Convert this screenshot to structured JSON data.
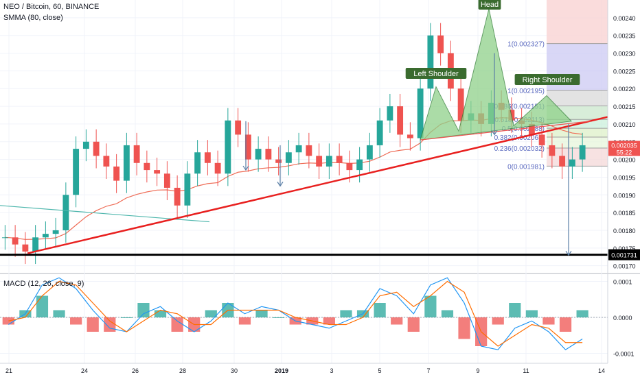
{
  "header": {
    "title": "NEO / Bitcoin, 60, BINANCE",
    "indicator": "SMMA (80, close)",
    "macd_label": "MACD (12, 26, close, 9)"
  },
  "colors": {
    "up": "#26a69a",
    "down": "#ef5350",
    "trendline": "#e8201f",
    "smma": "#ef6c56",
    "support": "#000000",
    "pattern_fill": "#8fd18a",
    "pattern_stroke": "#2e7d32",
    "macd_line": "#2196f3",
    "signal_line": "#ff6d00"
  },
  "chart_data": [
    {
      "type": "candlestick",
      "title": "NEO / Bitcoin, 60, BINANCE",
      "ylim": [
        0.00168,
        0.00245
      ],
      "y_ticks": [
        "0.00240",
        "0.00235",
        "0.00230",
        "0.00225",
        "0.00220",
        "0.00215",
        "0.00210",
        "0.00205",
        "0.00200",
        "0.00195",
        "0.00190",
        "0.00185",
        "0.00180",
        "0.00175",
        "0.00170"
      ],
      "x_ticks": [
        "21",
        "24",
        "26",
        "28",
        "30",
        "2019",
        "3",
        "5",
        "7",
        "9",
        "11",
        "14"
      ],
      "close_sequence": [
        0.00178,
        0.00176,
        0.00174,
        0.00178,
        0.00179,
        0.0018,
        0.0019,
        0.00203,
        0.00205,
        0.00201,
        0.00198,
        0.00194,
        0.00204,
        0.00199,
        0.00197,
        0.00196,
        0.00192,
        0.00187,
        0.00196,
        0.00202,
        0.00199,
        0.00196,
        0.00211,
        0.00207,
        0.002,
        0.00203,
        0.002,
        0.00199,
        0.00202,
        0.00204,
        0.00201,
        0.00198,
        0.00201,
        0.00199,
        0.00197,
        0.002,
        0.00204,
        0.00211,
        0.00215,
        0.00207,
        0.00206,
        0.0022,
        0.00235,
        0.0023,
        0.0022,
        0.00211,
        0.00213,
        0.0021,
        0.00216,
        0.00214,
        0.00211,
        0.0021,
        0.00207,
        0.00204,
        0.00201,
        0.00198,
        0.002,
        0.00204
      ],
      "last_price": "0.002035",
      "countdown": "55:22",
      "support_level": "0.001731",
      "annotations": {
        "left_shoulder": "Left Shoulder",
        "head": "Head",
        "right_shoulder": "Right Shoulder"
      },
      "fibonacci": [
        {
          "label": "1(0.002327)",
          "price": 0.002327
        },
        {
          "label": "1(0.002195)",
          "price": 0.002195
        },
        {
          "label": "0.786(0.002151)",
          "price": 0.002151
        },
        {
          "label": "0.618(0.002113)",
          "price": 0.002113
        },
        {
          "label": "0.5(0.002088)",
          "price": 0.002088
        },
        {
          "label": "0.382(0.002063)",
          "price": 0.002063
        },
        {
          "label": "0.236(0.002032)",
          "price": 0.002032
        },
        {
          "label": "0(0.001981)",
          "price": 0.001981
        }
      ]
    },
    {
      "type": "line",
      "title": "MACD (12, 26, close, 9)",
      "ylim": [
        -0.00012,
        0.00012
      ],
      "y_ticks": [
        "0.0001",
        "0.0000",
        "-0.0001"
      ],
      "macd_sequence": [
        -2e-05,
        1e-05,
        9e-05,
        0.00011,
        8e-05,
        2e-05,
        -3e-05,
        -4e-05,
        1e-05,
        3e-05,
        -1e-05,
        -4e-05,
        -1e-05,
        4e-05,
        1e-05,
        3e-05,
        2e-05,
        -1e-05,
        -2e-05,
        -3e-05,
        -1e-05,
        1e-05,
        8e-05,
        6e-05,
        1e-05,
        9e-05,
        0.00011,
        4e-05,
        -8e-05,
        -9e-05,
        -3e-05,
        -1e-05,
        -4e-05,
        -9e-05,
        -6e-05
      ],
      "signal_sequence": [
        -1e-05,
        0.0,
        6e-05,
        0.0001,
        9e-05,
        4e-05,
        -1e-05,
        -4e-05,
        -1e-05,
        2e-05,
        1e-05,
        -2e-05,
        -2e-05,
        2e-05,
        2e-05,
        2e-05,
        2e-05,
        0.0,
        -1e-05,
        -2e-05,
        -2e-05,
        0.0,
        6e-05,
        7e-05,
        3e-05,
        6e-05,
        0.0001,
        7e-05,
        -4e-05,
        -8e-05,
        -5e-05,
        -2e-05,
        -3e-05,
        -7e-05,
        -7e-05
      ]
    }
  ]
}
